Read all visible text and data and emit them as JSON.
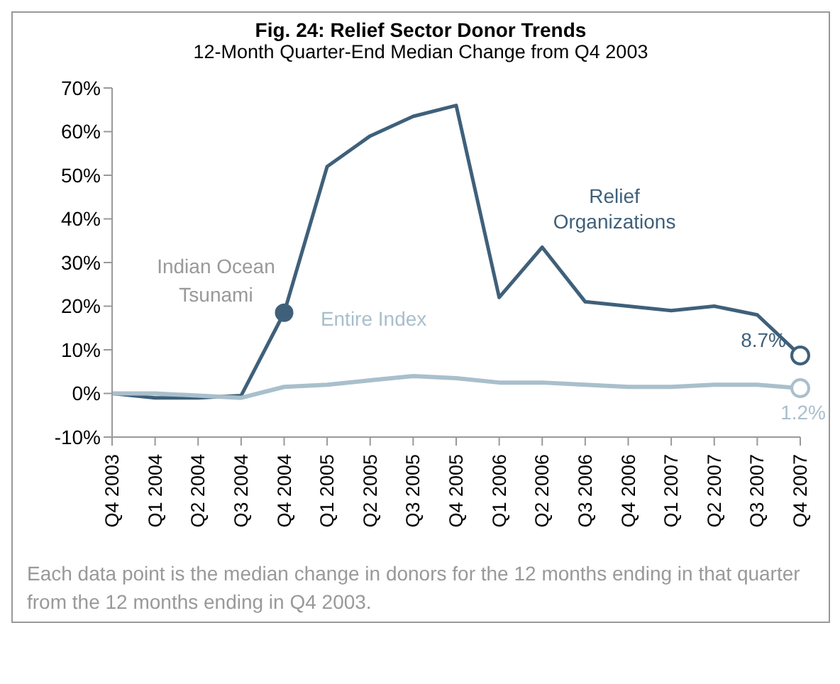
{
  "chart_data": {
    "type": "line",
    "title": "Fig. 24: Relief Sector Donor Trends",
    "subtitle": "12-Month Quarter-End Median Change from Q4 2003",
    "categories": [
      "Q4 2003",
      "Q1 2004",
      "Q2 2004",
      "Q3 2004",
      "Q4 2004",
      "Q1 2005",
      "Q2 2005",
      "Q3 2005",
      "Q4 2005",
      "Q1 2006",
      "Q2 2006",
      "Q3 2006",
      "Q4 2006",
      "Q1 2007",
      "Q2 2007",
      "Q3 2007",
      "Q4 2007"
    ],
    "series": [
      {
        "name": "Relief Organizations",
        "color": "#3f607a",
        "values": [
          0,
          -1,
          -1,
          -0.5,
          18.5,
          52,
          59,
          63.5,
          66,
          22,
          33.5,
          21,
          20,
          19,
          20,
          18,
          8.7
        ],
        "value_labels": [
          null,
          null,
          null,
          null,
          null,
          null,
          null,
          null,
          null,
          null,
          null,
          null,
          null,
          null,
          null,
          null,
          "8.7%"
        ]
      },
      {
        "name": "Entire Index",
        "color": "#a9bfcc",
        "values": [
          0,
          0,
          -0.5,
          -1,
          1.5,
          2,
          3,
          4,
          3.5,
          2.5,
          2.5,
          2,
          1.5,
          1.5,
          2,
          2,
          1.2
        ],
        "value_labels": [
          null,
          null,
          null,
          null,
          null,
          null,
          null,
          null,
          null,
          null,
          null,
          null,
          null,
          null,
          null,
          null,
          "1.2%"
        ]
      }
    ],
    "ylim": [
      -10,
      70
    ],
    "yticks": [
      {
        "value": -10,
        "label": "-10%"
      },
      {
        "value": 0,
        "label": "0%"
      },
      {
        "value": 10,
        "label": "10%"
      },
      {
        "value": 20,
        "label": "20%"
      },
      {
        "value": 30,
        "label": "30%"
      },
      {
        "value": 40,
        "label": "40%"
      },
      {
        "value": 50,
        "label": "50%"
      },
      {
        "value": 60,
        "label": "60%"
      },
      {
        "value": 70,
        "label": "70%"
      }
    ],
    "grid": false,
    "legend": false,
    "marker": "none",
    "line_style": "solid",
    "annotations": [
      {
        "text": "Indian Ocean Tsunami",
        "x": "Q4 2004",
        "y": 18.5
      },
      "Each data point is the median change in donors for the 12 months ending in that quarter from the 12 months ending in Q4 2003."
    ]
  }
}
